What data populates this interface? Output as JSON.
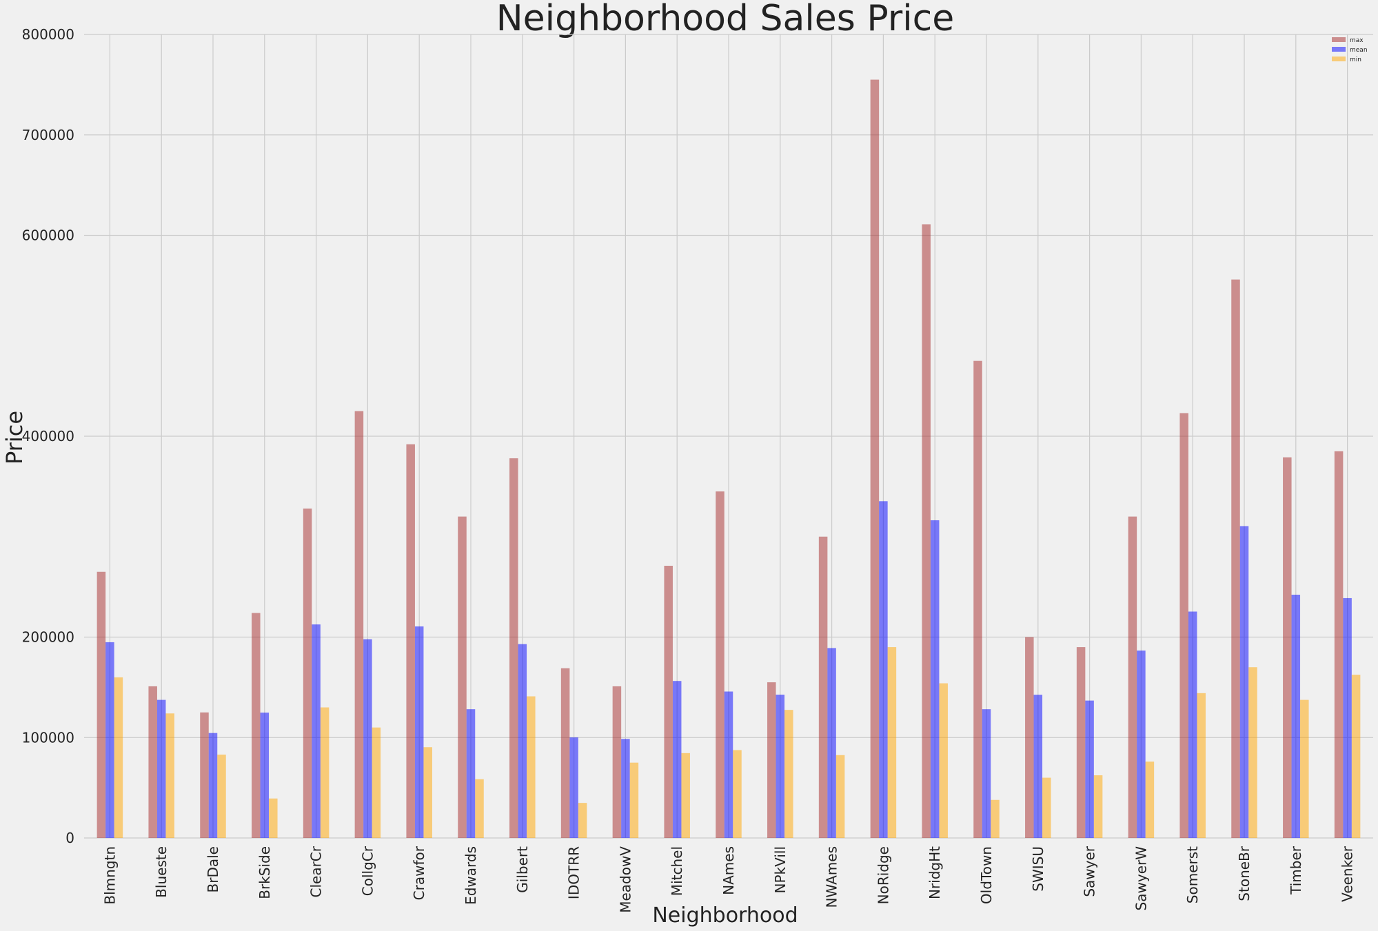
{
  "chart_data": {
    "type": "bar",
    "title": "Neighborhood Sales Price",
    "xlabel": "Neighborhood",
    "ylabel": "Price",
    "ylim": [
      0,
      800000
    ],
    "y_ticks": [
      0,
      100000,
      200000,
      400000,
      600000,
      700000,
      800000
    ],
    "grid": true,
    "legend_position": "top-right",
    "categories": [
      "Blmngtn",
      "Blueste",
      "BrDale",
      "BrkSide",
      "ClearCr",
      "CollgCr",
      "Crawfor",
      "Edwards",
      "Gilbert",
      "IDOTRR",
      "MeadowV",
      "Mitchel",
      "NAmes",
      "NPkVill",
      "NWAmes",
      "NoRidge",
      "NridgHt",
      "OldTown",
      "SWISU",
      "Sawyer",
      "SawyerW",
      "Somerst",
      "StoneBr",
      "Timber",
      "Veenker"
    ],
    "series": [
      {
        "name": "max",
        "color": "#a52a2a",
        "values": [
          265000,
          151000,
          125000,
          224000,
          328000,
          425000,
          392000,
          320000,
          378000,
          169000,
          151000,
          271000,
          345000,
          155000,
          300000,
          755000,
          611000,
          475000,
          200000,
          190000,
          320000,
          423000,
          556000,
          379000,
          385000
        ]
      },
      {
        "name": "mean",
        "color": "#0000ff",
        "values": [
          194900,
          137500,
          104500,
          124800,
          212600,
          197900,
          210600,
          128200,
          193000,
          100100,
          98600,
          156300,
          145800,
          142700,
          189100,
          335300,
          316300,
          128200,
          142600,
          136800,
          186600,
          225400,
          310500,
          242200,
          238800
        ]
      },
      {
        "name": "min",
        "color": "#ffa500",
        "values": [
          159900,
          124000,
          83000,
          39300,
          130000,
          110000,
          90400,
          58500,
          141000,
          34900,
          75000,
          84500,
          87500,
          127500,
          82500,
          190000,
          154000,
          37900,
          60000,
          62400,
          76000,
          144200,
          170000,
          137500,
          162500
        ]
      }
    ]
  }
}
